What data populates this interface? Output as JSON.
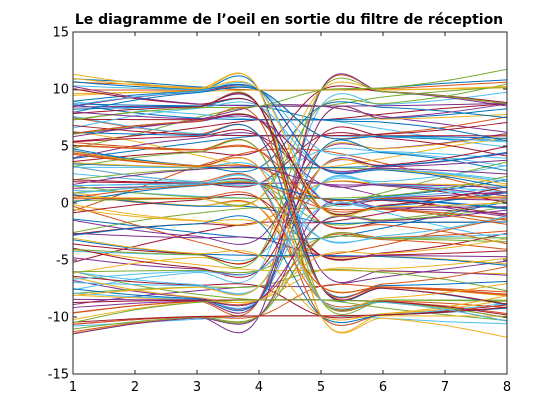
{
  "figure": {
    "title": "Le diagramme de l’oeil en sortie du filtre de réception"
  },
  "chart_data": {
    "type": "line",
    "title": "Le diagramme de l’oeil en sortie du filtre de réception",
    "xlabel": "",
    "ylabel": "",
    "xlim": [
      1,
      8
    ],
    "ylim": [
      -15,
      15
    ],
    "xticks": [
      "1",
      "2",
      "3",
      "4",
      "5",
      "6",
      "7",
      "8"
    ],
    "yticks": [
      "15",
      "10",
      "5",
      "0",
      "-5",
      "-10",
      "-15"
    ],
    "grid": false,
    "legend": "none",
    "symbol_period_samples": 8,
    "eye_openings_at_x": [
      4,
      5
    ],
    "amplitude_levels": [
      -9.9,
      -8.5,
      -7.3,
      -5.9,
      -4.6,
      -3.1,
      -1.7,
      -0.4,
      0.4,
      1.7,
      3.1,
      4.6,
      5.9,
      7.3,
      8.5,
      9.9
    ],
    "color_order": [
      "#0072BD",
      "#D95319",
      "#EDB120",
      "#7E2F8E",
      "#77AC30",
      "#4DBEEE",
      "#A2142F"
    ],
    "trace_count": 130,
    "series": [
      {
        "x": [
          1,
          2,
          3,
          4,
          5,
          6,
          7,
          8
        ],
        "y": [
          10.9,
          10.6,
          10.2,
          9.9,
          9.9,
          10.1,
          10.5,
          10.8
        ]
      },
      {
        "x": [
          1,
          2,
          3,
          4,
          5,
          6,
          7,
          8
        ],
        "y": [
          10.6,
          10.4,
          10.1,
          9.9,
          9.9,
          10.0,
          10.3,
          10.6
        ]
      },
      {
        "x": [
          1,
          2,
          3,
          4,
          5,
          6,
          7,
          8
        ],
        "y": [
          9.6,
          9.7,
          9.8,
          9.9,
          9.9,
          9.9,
          10.0,
          10.1
        ]
      },
      {
        "x": [
          1,
          2,
          3,
          4,
          5,
          6,
          7,
          8
        ],
        "y": [
          6.1,
          6.6,
          7.3,
          8.5,
          8.5,
          7.6,
          6.9,
          6.2
        ]
      },
      {
        "x": [
          1,
          2,
          3,
          4,
          5,
          6,
          7,
          8
        ],
        "y": [
          4.8,
          6.0,
          7.5,
          8.5,
          8.5,
          9.3,
          9.8,
          10.2
        ]
      },
      {
        "x": [
          1,
          2,
          3,
          4,
          5,
          6,
          7,
          8
        ],
        "y": [
          8.9,
          8.2,
          7.8,
          7.3,
          7.3,
          6.5,
          5.6,
          4.9
        ]
      },
      {
        "x": [
          1,
          2,
          3,
          4,
          5,
          6,
          7,
          8
        ],
        "y": [
          5.4,
          5.9,
          6.6,
          7.3,
          7.3,
          7.8,
          8.3,
          8.7
        ]
      },
      {
        "x": [
          1,
          2,
          3,
          4,
          5,
          6,
          7,
          8
        ],
        "y": [
          3.9,
          4.6,
          5.3,
          5.9,
          5.9,
          5.8,
          5.6,
          5.5
        ]
      },
      {
        "x": [
          1,
          2,
          3,
          4,
          5,
          6,
          7,
          8
        ],
        "y": [
          -0.7,
          1.2,
          3.2,
          4.6,
          4.6,
          3.5,
          2.2,
          0.9
        ]
      },
      {
        "x": [
          1,
          2,
          3,
          4,
          5,
          6,
          7,
          8
        ],
        "y": [
          6.3,
          5.4,
          4.2,
          3.1,
          3.1,
          3.9,
          4.9,
          5.7
        ]
      },
      {
        "x": [
          1,
          2,
          3,
          4,
          5,
          6,
          7,
          8
        ],
        "y": [
          1.3,
          1.4,
          1.6,
          1.7,
          1.7,
          0.6,
          -0.4,
          -1.2
        ]
      },
      {
        "x": [
          1,
          2,
          3,
          4,
          5,
          6,
          7,
          8
        ],
        "y": [
          -2.6,
          -1.6,
          -0.9,
          -0.4,
          -0.4,
          0.9,
          2.3,
          3.6
        ]
      },
      {
        "x": [
          1,
          2,
          3,
          4,
          5,
          6,
          7,
          8
        ],
        "y": [
          1.1,
          0.9,
          0.6,
          0.4,
          0.4,
          -0.8,
          -2.1,
          -3.2
        ]
      },
      {
        "x": [
          1,
          2,
          3,
          4,
          5,
          6,
          7,
          8
        ],
        "y": [
          -5.2,
          -3.8,
          -2.6,
          -1.7,
          -1.7,
          -0.9,
          0.2,
          1.0
        ]
      },
      {
        "x": [
          1,
          2,
          3,
          4,
          5,
          6,
          7,
          8
        ],
        "y": [
          -1.4,
          -2.0,
          -2.6,
          -3.1,
          -3.1,
          -2.2,
          -1.0,
          0.1
        ]
      },
      {
        "x": [
          1,
          2,
          3,
          4,
          5,
          6,
          7,
          8
        ],
        "y": [
          -0.3,
          -1.9,
          -3.4,
          -4.6,
          -4.6,
          -3.7,
          -2.4,
          -1.3
        ]
      },
      {
        "x": [
          1,
          2,
          3,
          4,
          5,
          6,
          7,
          8
        ],
        "y": [
          -4.1,
          -4.8,
          -5.4,
          -5.9,
          -5.9,
          -6.0,
          -6.1,
          -6.2
        ]
      },
      {
        "x": [
          1,
          2,
          3,
          4,
          5,
          6,
          7,
          8
        ],
        "y": [
          -8.9,
          -8.2,
          -7.7,
          -7.3,
          -7.3,
          -6.5,
          -5.8,
          -5.1
        ]
      },
      {
        "x": [
          1,
          2,
          3,
          4,
          5,
          6,
          7,
          8
        ],
        "y": [
          -6.0,
          -7.2,
          -8.0,
          -8.5,
          -8.5,
          -9.2,
          -9.8,
          -10.3
        ]
      },
      {
        "x": [
          1,
          2,
          3,
          4,
          5,
          6,
          7,
          8
        ],
        "y": [
          -10.8,
          -10.5,
          -10.2,
          -9.9,
          -9.9,
          -10.1,
          -10.4,
          -10.6
        ]
      }
    ]
  }
}
